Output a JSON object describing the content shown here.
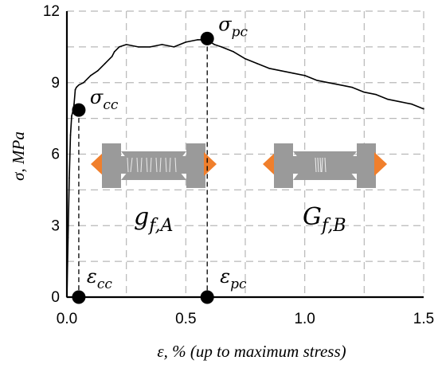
{
  "chart_data": {
    "type": "line",
    "xlabel": "ε, % (up to maximum stress)",
    "ylabel": "σ, MPa",
    "xlim": [
      0,
      1.5
    ],
    "ylim": [
      0,
      12
    ],
    "x_ticks": [
      "0.0",
      "0.5",
      "1.0",
      "1.5"
    ],
    "y_ticks": [
      "0",
      "3",
      "6",
      "9",
      "12"
    ],
    "x_tick_values": [
      0,
      0.5,
      1.0,
      1.5
    ],
    "y_tick_values": [
      0,
      3,
      6,
      9,
      12
    ],
    "minor_x_grid": [
      0.25,
      0.75,
      1.25
    ],
    "minor_y_grid": [
      1.5,
      4.5,
      7.5,
      10.5
    ],
    "grid": true,
    "series": [
      {
        "x": [
          0,
          0.005,
          0.01,
          0.015,
          0.02,
          0.025,
          0.03,
          0.035,
          0.04,
          0.05,
          0.07,
          0.09,
          0.1,
          0.13,
          0.16,
          0.19,
          0.2,
          0.22,
          0.25,
          0.3,
          0.35,
          0.4,
          0.45,
          0.5,
          0.55,
          0.59,
          0.62,
          0.65,
          0.7,
          0.75,
          0.8,
          0.85,
          0.9,
          0.95,
          1.0,
          1.05,
          1.1,
          1.15,
          1.2,
          1.25,
          1.3,
          1.35,
          1.4,
          1.45,
          1.5
        ],
        "y": [
          0,
          2.5,
          5.0,
          6.8,
          7.6,
          7.8,
          8.1,
          8.7,
          8.8,
          8.9,
          9.0,
          9.2,
          9.3,
          9.5,
          9.8,
          10.1,
          10.3,
          10.5,
          10.6,
          10.5,
          10.5,
          10.6,
          10.5,
          10.7,
          10.8,
          10.8,
          10.6,
          10.5,
          10.3,
          10.0,
          9.8,
          9.6,
          9.5,
          9.4,
          9.3,
          9.1,
          9.0,
          8.9,
          8.8,
          8.6,
          8.5,
          8.3,
          8.2,
          8.1,
          7.9
        ]
      }
    ],
    "points": [
      {
        "x": 0.05,
        "y": 7.85,
        "label_main": "σ",
        "label_sub": "cc"
      },
      {
        "x": 0.59,
        "y": 10.85,
        "label_main": "σ",
        "label_sub": "pc"
      },
      {
        "x": 0.05,
        "y": 0,
        "label_main": "ε",
        "label_sub": "cc"
      },
      {
        "x": 0.59,
        "y": 0,
        "label_main": "ε",
        "label_sub": "pc"
      }
    ],
    "region_labels": [
      {
        "main": "g",
        "sub": "f,A"
      },
      {
        "main": "G",
        "sub": "f,B"
      }
    ]
  }
}
